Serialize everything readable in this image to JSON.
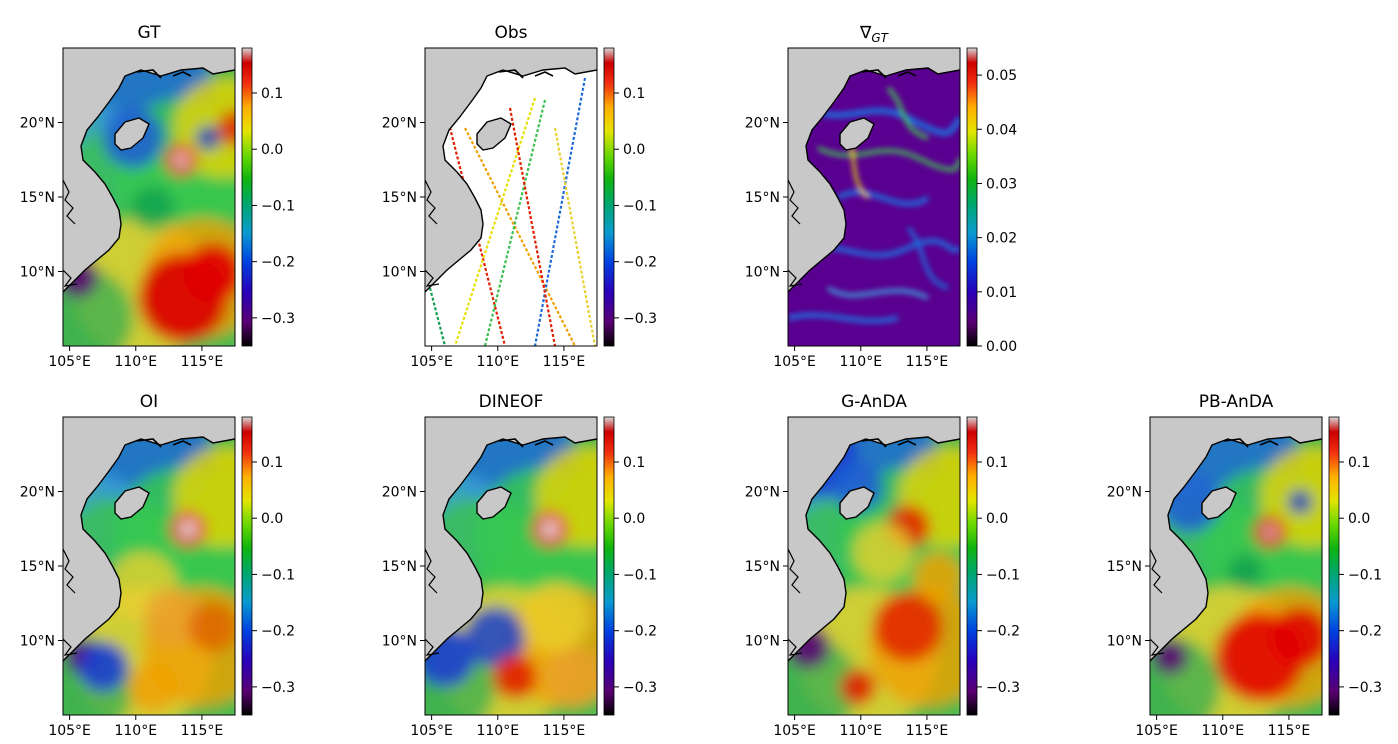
{
  "figure": {
    "panels": [
      {
        "title": "GT",
        "title_sub": "",
        "cbar_ticks": [
          "0.1",
          "0.0",
          "−0.1",
          "−0.2",
          "−0.3"
        ],
        "cbar_values": [
          0.1,
          0.0,
          -0.1,
          -0.2,
          -0.3
        ],
        "cbar_range": [
          -0.35,
          0.18
        ],
        "colormap": "nipy_spectral",
        "field": "gt"
      },
      {
        "title": "Obs",
        "title_sub": "",
        "cbar_ticks": [
          "0.1",
          "0.0",
          "−0.1",
          "−0.2",
          "−0.3"
        ],
        "cbar_values": [
          0.1,
          0.0,
          -0.1,
          -0.2,
          -0.3
        ],
        "cbar_range": [
          -0.35,
          0.18
        ],
        "colormap": "nipy_spectral",
        "field": "obs"
      },
      {
        "title": "∇",
        "title_sub": "GT",
        "cbar_ticks": [
          "0.05",
          "0.04",
          "0.03",
          "0.02",
          "0.01",
          "0.00"
        ],
        "cbar_values": [
          0.05,
          0.04,
          0.03,
          0.02,
          0.01,
          0.0
        ],
        "cbar_range": [
          0.0,
          0.055
        ],
        "colormap": "nipy_spectral",
        "field": "grad"
      },
      {
        "title": "OI",
        "title_sub": "",
        "cbar_ticks": [
          "0.1",
          "0.0",
          "−0.1",
          "−0.2",
          "−0.3"
        ],
        "cbar_values": [
          0.1,
          0.0,
          -0.1,
          -0.2,
          -0.3
        ],
        "cbar_range": [
          -0.35,
          0.18
        ],
        "colormap": "nipy_spectral",
        "field": "oi"
      },
      {
        "title": "DINEOF",
        "title_sub": "",
        "cbar_ticks": [
          "0.1",
          "0.0",
          "−0.1",
          "−0.2",
          "−0.3"
        ],
        "cbar_values": [
          0.1,
          0.0,
          -0.1,
          -0.2,
          -0.3
        ],
        "cbar_range": [
          -0.35,
          0.18
        ],
        "colormap": "nipy_spectral",
        "field": "dineof"
      },
      {
        "title": "G-AnDA",
        "title_sub": "",
        "cbar_ticks": [
          "0.1",
          "0.0",
          "−0.1",
          "−0.2",
          "−0.3"
        ],
        "cbar_values": [
          0.1,
          0.0,
          -0.1,
          -0.2,
          -0.3
        ],
        "cbar_range": [
          -0.35,
          0.18
        ],
        "colormap": "nipy_spectral",
        "field": "ganda"
      },
      {
        "title": "PB-AnDA",
        "title_sub": "",
        "cbar_ticks": [
          "0.1",
          "0.0",
          "−0.1",
          "−0.2",
          "−0.3"
        ],
        "cbar_values": [
          0.1,
          0.0,
          -0.1,
          -0.2,
          -0.3
        ],
        "cbar_range": [
          -0.35,
          0.18
        ],
        "colormap": "nipy_spectral",
        "field": "pbanda"
      }
    ],
    "x_ticks": [
      "105°E",
      "110°E",
      "115°E"
    ],
    "y_ticks": [
      "20°N",
      "15°N",
      "10°N"
    ],
    "colors": {
      "land": "#c8c8c8",
      "coast": "#000000",
      "ocean_obs_bg": "#ffffff"
    }
  },
  "chart_data": {
    "type": "heatmap",
    "panels": [
      "GT",
      "Obs",
      "∇GT",
      "OI",
      "DINEOF",
      "G-AnDA",
      "PB-AnDA"
    ],
    "x_axis": {
      "ticks": [
        105,
        110,
        115
      ],
      "labels": [
        "105°E",
        "110°E",
        "115°E"
      ],
      "range": [
        104.5,
        117.5
      ]
    },
    "y_axis": {
      "ticks": [
        20,
        15,
        10
      ],
      "labels": [
        "20°N",
        "15°N",
        "10°N"
      ],
      "range": [
        5,
        25
      ]
    },
    "colorbars": {
      "GT": {
        "ticks": [
          0.1,
          0.0,
          -0.1,
          -0.2,
          -0.3
        ]
      },
      "Obs": {
        "ticks": [
          0.1,
          0.0,
          -0.1,
          -0.2,
          -0.3
        ]
      },
      "∇GT": {
        "ticks": [
          0.05,
          0.04,
          0.03,
          0.02,
          0.01,
          0.0
        ]
      },
      "OI": {
        "ticks": [
          0.1,
          0.0,
          -0.1,
          -0.2,
          -0.3
        ]
      },
      "DINEOF": {
        "ticks": [
          0.1,
          0.0,
          -0.1,
          -0.2,
          -0.3
        ]
      },
      "G-AnDA": {
        "ticks": [
          0.1,
          0.0,
          -0.1,
          -0.2,
          -0.3
        ]
      },
      "PB-AnDA": {
        "ticks": [
          0.1,
          0.0,
          -0.1,
          -0.2,
          -0.3
        ]
      }
    }
  }
}
